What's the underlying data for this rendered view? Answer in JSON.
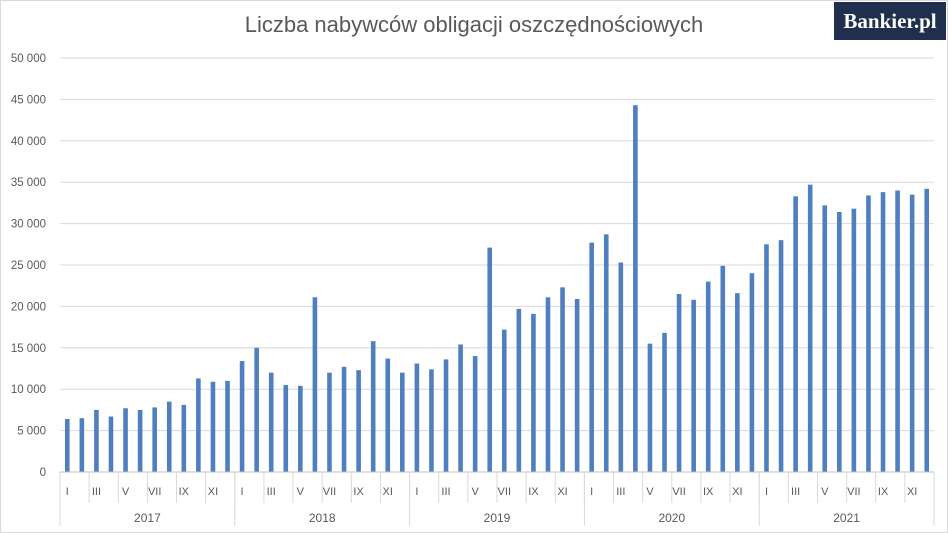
{
  "chart_data": {
    "type": "bar",
    "title": "Liczba nabywców obligacji oszczędnościowych",
    "xlabel": "",
    "ylabel": "",
    "ylim": [
      0,
      50000
    ],
    "yticks": [
      0,
      5000,
      10000,
      15000,
      20000,
      25000,
      30000,
      35000,
      40000,
      45000,
      50000
    ],
    "ytick_labels": [
      "0",
      "5 000",
      "10 000",
      "15 000",
      "20 000",
      "25 000",
      "30 000",
      "35 000",
      "40 000",
      "45 000",
      "50 000"
    ],
    "grid": true,
    "legend": "none",
    "bar_color": "#4f7fbf",
    "years": [
      "2017",
      "2018",
      "2019",
      "2020",
      "2021"
    ],
    "month_labels": [
      "I",
      "",
      "III",
      "",
      "V",
      "",
      "VII",
      "",
      "IX",
      "",
      "XI",
      ""
    ],
    "values": [
      6400,
      6500,
      7500,
      6700,
      7700,
      7500,
      7800,
      8500,
      8100,
      11300,
      10900,
      11000,
      13400,
      15000,
      12000,
      10500,
      10400,
      21100,
      12000,
      12700,
      12300,
      15800,
      13700,
      12000,
      13100,
      12400,
      13600,
      15400,
      14000,
      27100,
      17200,
      19700,
      19100,
      21100,
      22300,
      20900,
      27700,
      28700,
      25300,
      44300,
      15500,
      16800,
      21500,
      20800,
      23000,
      24900,
      21600,
      24000,
      27500,
      28000,
      33300,
      34700,
      32200,
      31400,
      31800,
      33400,
      33800,
      34000,
      33500,
      34200
    ]
  },
  "brand": {
    "logo_text": "Bankier.pl"
  }
}
